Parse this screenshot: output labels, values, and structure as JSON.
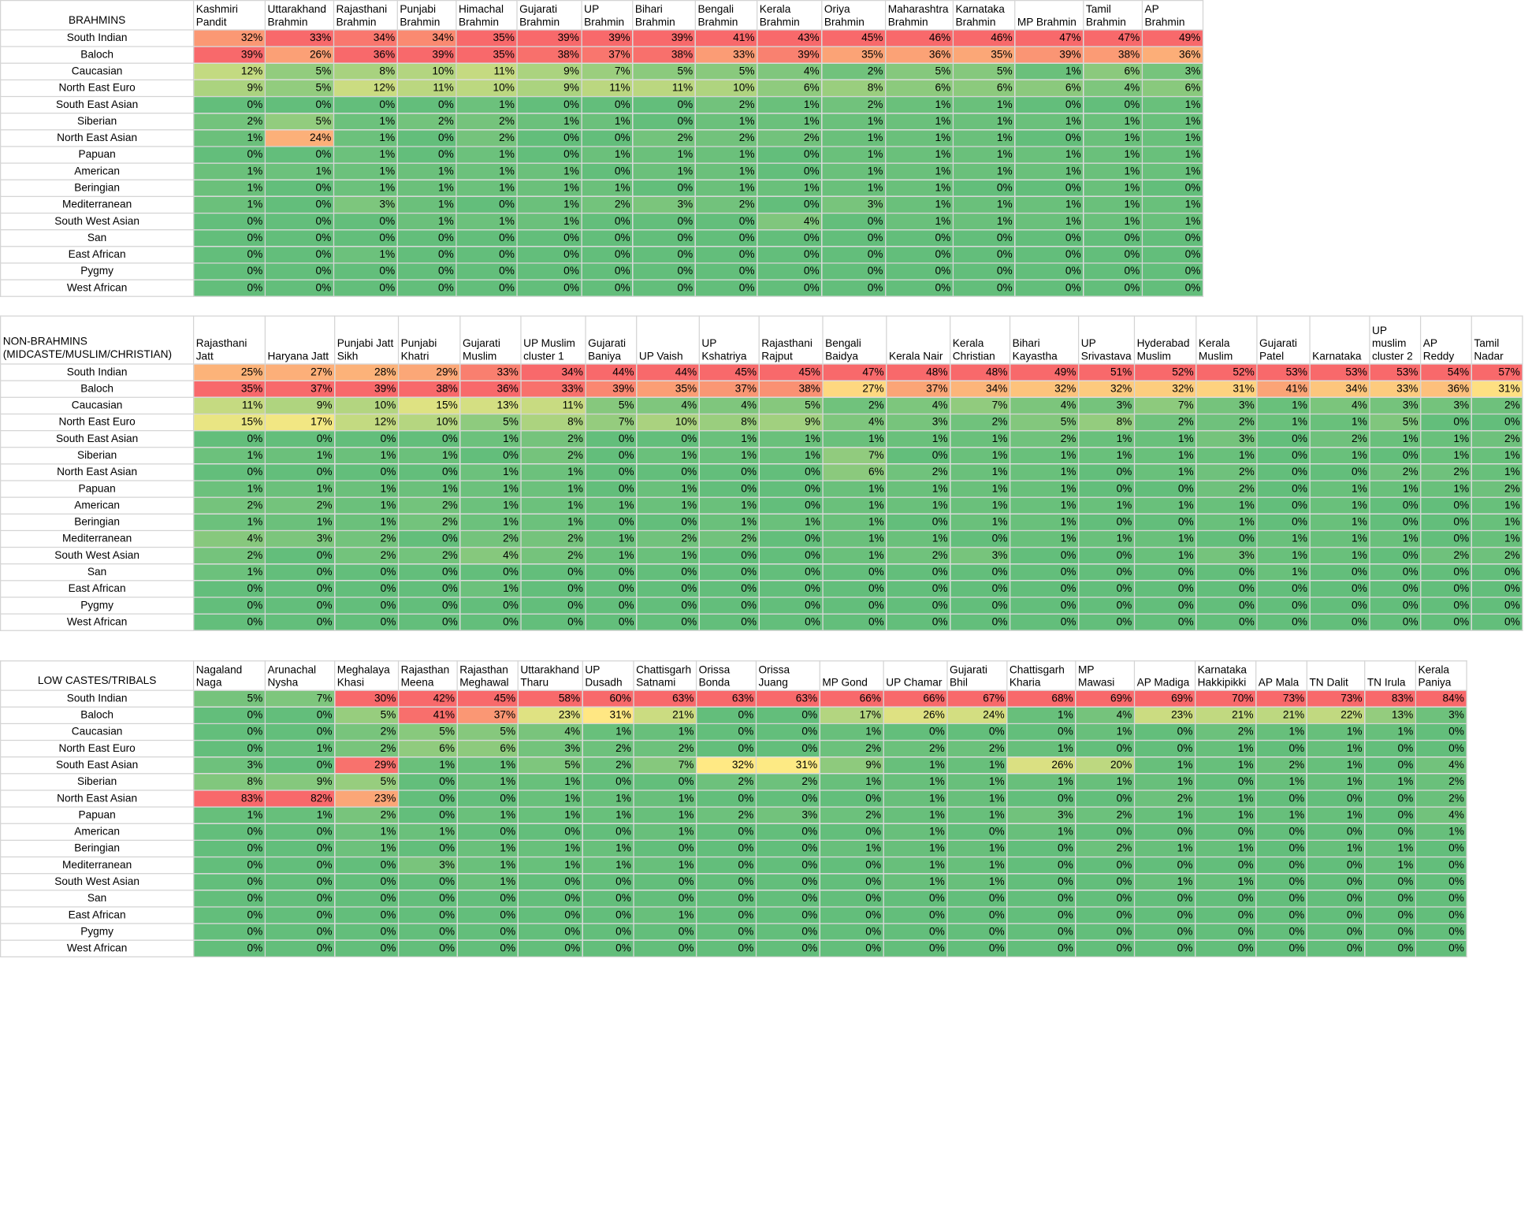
{
  "chart_data": [
    {
      "type": "heatmap",
      "title": "BRAHMINS",
      "columns": [
        "Kashmiri Pandit",
        "Uttarakhand Brahmin",
        "Rajasthani Brahmin",
        "Punjabi Brahmin",
        "Himachal Brahmin",
        "Gujarati Brahmin",
        "UP Brahmin",
        "Bihari Brahmin",
        "Bengali Brahmin",
        "Kerala Brahmin",
        "Oriya Brahmin",
        "Maharashtra Brahmin",
        "Karnataka Brahmin",
        "MP Brahmin",
        "Tamil Brahmin",
        "AP Brahmin"
      ],
      "rows": [
        "South Indian",
        "Baloch",
        "Caucasian",
        "North East Euro",
        "South East Asian",
        "Siberian",
        "North East Asian",
        "Papuan",
        "American",
        "Beringian",
        "Mediterranean",
        "South West Asian",
        "San",
        "East African",
        "Pygmy",
        "West African"
      ],
      "values": [
        [
          32,
          33,
          34,
          34,
          35,
          39,
          39,
          39,
          41,
          43,
          45,
          46,
          46,
          47,
          47,
          49
        ],
        [
          39,
          26,
          36,
          39,
          35,
          38,
          37,
          38,
          33,
          39,
          35,
          36,
          35,
          39,
          38,
          36
        ],
        [
          12,
          5,
          8,
          10,
          11,
          9,
          7,
          5,
          5,
          4,
          2,
          5,
          5,
          1,
          6,
          3
        ],
        [
          9,
          5,
          12,
          11,
          10,
          9,
          11,
          11,
          10,
          6,
          8,
          6,
          6,
          6,
          4,
          6
        ],
        [
          0,
          0,
          0,
          0,
          1,
          0,
          0,
          0,
          2,
          1,
          2,
          1,
          1,
          0,
          0,
          1
        ],
        [
          2,
          5,
          1,
          2,
          2,
          1,
          1,
          0,
          1,
          1,
          1,
          1,
          1,
          1,
          1,
          1
        ],
        [
          1,
          24,
          1,
          0,
          2,
          0,
          0,
          2,
          2,
          2,
          1,
          1,
          1,
          0,
          1,
          1
        ],
        [
          0,
          0,
          1,
          0,
          1,
          0,
          1,
          1,
          1,
          0,
          1,
          1,
          1,
          1,
          1,
          1
        ],
        [
          1,
          1,
          1,
          1,
          1,
          1,
          0,
          1,
          1,
          0,
          1,
          1,
          1,
          1,
          1,
          1
        ],
        [
          1,
          0,
          1,
          1,
          1,
          1,
          1,
          0,
          1,
          1,
          1,
          1,
          0,
          0,
          1,
          0
        ],
        [
          1,
          0,
          3,
          1,
          0,
          1,
          2,
          3,
          2,
          0,
          3,
          1,
          1,
          1,
          1,
          1
        ],
        [
          0,
          0,
          0,
          1,
          1,
          1,
          0,
          0,
          0,
          4,
          0,
          1,
          1,
          1,
          1,
          1
        ],
        [
          0,
          0,
          0,
          0,
          0,
          0,
          0,
          0,
          0,
          0,
          0,
          0,
          0,
          0,
          0,
          0
        ],
        [
          0,
          0,
          1,
          0,
          0,
          0,
          0,
          0,
          0,
          0,
          0,
          0,
          0,
          0,
          0,
          0
        ],
        [
          0,
          0,
          0,
          0,
          0,
          0,
          0,
          0,
          0,
          0,
          0,
          0,
          0,
          0,
          0,
          0
        ],
        [
          0,
          0,
          0,
          0,
          0,
          0,
          0,
          0,
          0,
          0,
          0,
          0,
          0,
          0,
          0,
          0
        ]
      ],
      "unit": "%"
    },
    {
      "type": "heatmap",
      "title": "NON-BRAHMINS (MIDCASTE/MUSLIM/CHRISTIAN)",
      "columns": [
        "Rajasthani Jatt",
        "Haryana Jatt",
        "Punjabi Jatt Sikh",
        "Punjabi Khatri",
        "Gujarati Muslim",
        "UP Muslim cluster 1",
        "Gujarati Baniya",
        "UP Vaish",
        "UP Kshatriya",
        "Rajasthani Rajput",
        "Bengali Baidya",
        "Kerala Nair",
        "Kerala Christian",
        "Bihari Kayastha",
        "UP Srivastava",
        "Hyderabad Muslim",
        "Kerala Muslim",
        "Gujarati Patel",
        "Karnataka",
        "UP muslim cluster 2",
        "AP Reddy",
        "Tamil Nadar"
      ],
      "rows": [
        "South Indian",
        "Baloch",
        "Caucasian",
        "North East Euro",
        "South East Asian",
        "Siberian",
        "North East Asian",
        "Papuan",
        "American",
        "Beringian",
        "Mediterranean",
        "South West Asian",
        "San",
        "East African",
        "Pygmy",
        "West African"
      ],
      "values": [
        [
          25,
          27,
          28,
          29,
          33,
          34,
          44,
          44,
          45,
          45,
          47,
          48,
          48,
          49,
          51,
          52,
          52,
          53,
          53,
          53,
          54,
          57
        ],
        [
          35,
          37,
          39,
          38,
          36,
          33,
          39,
          35,
          37,
          38,
          27,
          37,
          34,
          32,
          32,
          32,
          31,
          41,
          34,
          33,
          36,
          31
        ],
        [
          11,
          9,
          10,
          15,
          13,
          11,
          5,
          4,
          4,
          5,
          2,
          4,
          7,
          4,
          3,
          7,
          3,
          1,
          4,
          3,
          3,
          2
        ],
        [
          15,
          17,
          12,
          10,
          5,
          8,
          7,
          10,
          8,
          9,
          4,
          3,
          2,
          5,
          8,
          2,
          2,
          1,
          1,
          5,
          0,
          0
        ],
        [
          0,
          0,
          0,
          0,
          1,
          2,
          0,
          0,
          1,
          1,
          1,
          1,
          1,
          2,
          1,
          1,
          3,
          0,
          2,
          1,
          1,
          2
        ],
        [
          1,
          1,
          1,
          1,
          0,
          2,
          0,
          1,
          1,
          1,
          7,
          0,
          1,
          1,
          1,
          1,
          1,
          0,
          1,
          0,
          1,
          1
        ],
        [
          0,
          0,
          0,
          0,
          1,
          1,
          0,
          0,
          0,
          0,
          6,
          2,
          1,
          1,
          0,
          1,
          2,
          0,
          0,
          2,
          2,
          1
        ],
        [
          1,
          1,
          1,
          1,
          1,
          1,
          0,
          1,
          0,
          0,
          1,
          1,
          1,
          1,
          0,
          0,
          2,
          0,
          1,
          1,
          1,
          2
        ],
        [
          2,
          2,
          1,
          2,
          1,
          1,
          1,
          1,
          1,
          0,
          1,
          1,
          1,
          1,
          1,
          1,
          1,
          0,
          1,
          0,
          0,
          1
        ],
        [
          1,
          1,
          1,
          2,
          1,
          1,
          0,
          0,
          1,
          1,
          1,
          0,
          1,
          1,
          0,
          0,
          1,
          0,
          1,
          0,
          0,
          1
        ],
        [
          4,
          3,
          2,
          0,
          2,
          2,
          1,
          2,
          2,
          0,
          1,
          1,
          0,
          1,
          1,
          1,
          0,
          1,
          1,
          1,
          0,
          1
        ],
        [
          2,
          0,
          2,
          2,
          4,
          2,
          1,
          1,
          0,
          0,
          1,
          2,
          3,
          0,
          0,
          1,
          3,
          1,
          1,
          0,
          2,
          2
        ],
        [
          1,
          0,
          0,
          0,
          0,
          0,
          0,
          0,
          0,
          0,
          0,
          0,
          0,
          0,
          0,
          0,
          0,
          1,
          0,
          0,
          0,
          0
        ],
        [
          0,
          0,
          0,
          0,
          1,
          0,
          0,
          0,
          0,
          0,
          0,
          0,
          0,
          0,
          0,
          0,
          0,
          0,
          0,
          0,
          0,
          0
        ],
        [
          0,
          0,
          0,
          0,
          0,
          0,
          0,
          0,
          0,
          0,
          0,
          0,
          0,
          0,
          0,
          0,
          0,
          0,
          0,
          0,
          0,
          0
        ],
        [
          0,
          0,
          0,
          0,
          0,
          0,
          0,
          0,
          0,
          0,
          0,
          0,
          0,
          0,
          0,
          0,
          0,
          0,
          0,
          0,
          0,
          0
        ]
      ],
      "unit": "%"
    },
    {
      "type": "heatmap",
      "title": "LOW CASTES/TRIBALS",
      "columns": [
        "Nagaland Naga",
        "Arunachal Nysha",
        "Meghalaya Khasi",
        "Rajasthan Meena",
        "Rajasthan Meghawal",
        "Uttarakhand Tharu",
        "UP Dusadh",
        "Chattisgarh Satnami",
        "Orissa Bonda",
        "Orissa Juang",
        "MP Gond",
        "UP Chamar",
        "Gujarati Bhil",
        "Chattisgarh Kharia",
        "MP Mawasi",
        "AP Madiga",
        "Karnataka Hakkipikki",
        "AP Mala",
        "TN Dalit",
        "TN Irula",
        "Kerala Paniya"
      ],
      "rows": [
        "South Indian",
        "Baloch",
        "Caucasian",
        "North East Euro",
        "South East Asian",
        "Siberian",
        "North East Asian",
        "Papuan",
        "American",
        "Beringian",
        "Mediterranean",
        "South West Asian",
        "San",
        "East African",
        "Pygmy",
        "West African"
      ],
      "values": [
        [
          5,
          7,
          30,
          42,
          45,
          58,
          60,
          63,
          63,
          63,
          66,
          66,
          67,
          68,
          69,
          69,
          70,
          73,
          73,
          83,
          84
        ],
        [
          0,
          0,
          5,
          41,
          37,
          23,
          31,
          21,
          0,
          0,
          17,
          26,
          24,
          1,
          4,
          23,
          21,
          21,
          22,
          13,
          3
        ],
        [
          0,
          0,
          2,
          5,
          5,
          4,
          1,
          1,
          0,
          0,
          1,
          0,
          0,
          0,
          1,
          0,
          2,
          1,
          1,
          1,
          0
        ],
        [
          0,
          1,
          2,
          6,
          6,
          3,
          2,
          2,
          0,
          0,
          2,
          2,
          2,
          1,
          0,
          0,
          1,
          0,
          1,
          0,
          0
        ],
        [
          3,
          0,
          29,
          1,
          1,
          5,
          2,
          7,
          32,
          31,
          9,
          1,
          1,
          26,
          20,
          1,
          1,
          2,
          1,
          0,
          4
        ],
        [
          8,
          9,
          5,
          0,
          1,
          1,
          0,
          0,
          2,
          2,
          1,
          1,
          1,
          1,
          1,
          1,
          0,
          1,
          1,
          1,
          2
        ],
        [
          83,
          82,
          23,
          0,
          0,
          1,
          1,
          1,
          0,
          0,
          0,
          1,
          1,
          0,
          0,
          2,
          1,
          0,
          0,
          0,
          2
        ],
        [
          1,
          1,
          2,
          0,
          1,
          1,
          1,
          1,
          2,
          3,
          2,
          1,
          1,
          3,
          2,
          1,
          1,
          1,
          1,
          0,
          4
        ],
        [
          0,
          0,
          1,
          1,
          0,
          0,
          0,
          1,
          0,
          0,
          0,
          1,
          0,
          1,
          0,
          0,
          0,
          0,
          0,
          0,
          1
        ],
        [
          0,
          0,
          1,
          0,
          1,
          1,
          1,
          0,
          0,
          0,
          1,
          1,
          1,
          0,
          2,
          1,
          1,
          0,
          1,
          1,
          0
        ],
        [
          0,
          0,
          0,
          3,
          1,
          1,
          1,
          1,
          0,
          0,
          0,
          1,
          1,
          0,
          0,
          0,
          0,
          0,
          0,
          1,
          0
        ],
        [
          0,
          0,
          0,
          0,
          1,
          0,
          0,
          0,
          0,
          0,
          0,
          1,
          1,
          0,
          0,
          1,
          1,
          0,
          0,
          0,
          0
        ],
        [
          0,
          0,
          0,
          0,
          0,
          0,
          0,
          0,
          0,
          0,
          0,
          0,
          0,
          0,
          0,
          0,
          0,
          0,
          0,
          0,
          0
        ],
        [
          0,
          0,
          0,
          0,
          0,
          0,
          0,
          1,
          0,
          0,
          0,
          0,
          0,
          0,
          0,
          0,
          0,
          0,
          0,
          0,
          0
        ],
        [
          0,
          0,
          0,
          0,
          0,
          0,
          0,
          0,
          0,
          0,
          0,
          0,
          0,
          0,
          0,
          0,
          0,
          0,
          0,
          0,
          0
        ],
        [
          0,
          0,
          0,
          0,
          0,
          0,
          0,
          0,
          0,
          0,
          0,
          0,
          0,
          0,
          0,
          0,
          0,
          0,
          0,
          0,
          0
        ]
      ],
      "unit": "%"
    }
  ],
  "colors": {
    "low": "#63be7b",
    "mid": "#ffeb84",
    "high": "#f8696b"
  }
}
